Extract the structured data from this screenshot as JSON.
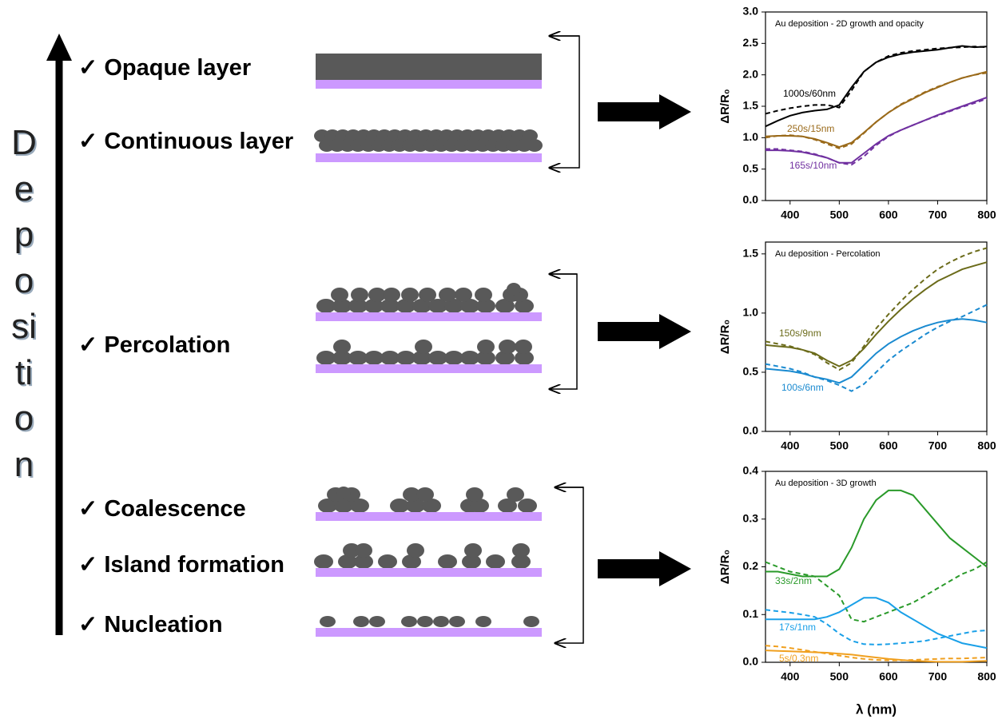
{
  "diagram": {
    "axis_label": "Deposition",
    "stages": [
      "✓ Opaque layer",
      "✓ Continuous layer",
      "✓ Percolation",
      "✓ Coalescence",
      "✓ Island formation",
      "✓ Nucleation"
    ]
  },
  "chart_data": [
    {
      "type": "line",
      "title": "Au deposition - 2D growth and opacity",
      "ylabel": "ΔR/R₀",
      "x": [
        350,
        375,
        400,
        425,
        450,
        475,
        500,
        525,
        550,
        575,
        600,
        625,
        650,
        675,
        700,
        725,
        750,
        775,
        800
      ],
      "xlim": [
        350,
        800
      ],
      "xticks": [
        400,
        500,
        600,
        700,
        800
      ],
      "ylim": [
        0,
        3
      ],
      "yticks": [
        {
          "value": 0,
          "label": "0.0"
        },
        0.5,
        {
          "value": 1,
          "label": "1.0"
        },
        1.5,
        {
          "value": 2,
          "label": "2.0"
        },
        2.5,
        {
          "value": 3,
          "label": "3.0"
        }
      ],
      "series": [
        {
          "name": "1000s/60nm",
          "color": "#000000",
          "values": [
            1.18,
            1.27,
            1.35,
            1.4,
            1.43,
            1.45,
            1.52,
            1.8,
            2.05,
            2.2,
            2.28,
            2.33,
            2.36,
            2.38,
            2.4,
            2.43,
            2.46,
            2.44,
            2.45
          ]
        },
        {
          "color": "#000000",
          "dash": true,
          "values": [
            1.38,
            1.43,
            1.47,
            1.5,
            1.52,
            1.52,
            1.48,
            1.75,
            2.05,
            2.2,
            2.3,
            2.35,
            2.38,
            2.4,
            2.42,
            2.43,
            2.44,
            2.45,
            2.44
          ]
        },
        {
          "name": "250s/15nm",
          "color": "#9a6a1a",
          "values": [
            1.02,
            1.03,
            1.03,
            1.02,
            0.98,
            0.92,
            0.85,
            0.92,
            1.08,
            1.25,
            1.4,
            1.52,
            1.62,
            1.72,
            1.8,
            1.88,
            1.95,
            2.0,
            2.05
          ]
        },
        {
          "color": "#9a6a1a",
          "dash": true,
          "values": [
            1.0,
            1.03,
            1.04,
            1.02,
            0.97,
            0.9,
            0.83,
            0.9,
            1.07,
            1.25,
            1.4,
            1.53,
            1.63,
            1.73,
            1.81,
            1.88,
            1.95,
            2.0,
            2.03
          ]
        },
        {
          "name": "165s/10nm",
          "color": "#7030a0",
          "values": [
            0.8,
            0.8,
            0.79,
            0.77,
            0.73,
            0.68,
            0.6,
            0.6,
            0.75,
            0.9,
            1.03,
            1.12,
            1.2,
            1.28,
            1.36,
            1.43,
            1.5,
            1.57,
            1.64
          ]
        },
        {
          "color": "#7030a0",
          "dash": true,
          "values": [
            0.82,
            0.82,
            0.8,
            0.78,
            0.74,
            0.68,
            0.6,
            0.57,
            0.7,
            0.88,
            1.02,
            1.12,
            1.2,
            1.28,
            1.35,
            1.42,
            1.49,
            1.55,
            1.62
          ]
        }
      ]
    },
    {
      "type": "line",
      "title": "Au deposition - Percolation",
      "ylabel": "ΔR/R₀",
      "x": [
        350,
        375,
        400,
        425,
        450,
        475,
        500,
        525,
        550,
        575,
        600,
        625,
        650,
        675,
        700,
        725,
        750,
        775,
        800
      ],
      "xlim": [
        350,
        800
      ],
      "xticks": [
        400,
        500,
        600,
        700,
        800
      ],
      "ylim": [
        0,
        1.6
      ],
      "yticks": [
        {
          "value": 0,
          "label": "0.0"
        },
        0.5,
        {
          "value": 1,
          "label": "1.0"
        },
        1.5
      ],
      "series": [
        {
          "name": "150s/9nm",
          "color": "#6b6b1a",
          "values": [
            0.73,
            0.72,
            0.71,
            0.69,
            0.66,
            0.6,
            0.55,
            0.6,
            0.7,
            0.82,
            0.93,
            1.03,
            1.12,
            1.2,
            1.27,
            1.32,
            1.37,
            1.4,
            1.43
          ]
        },
        {
          "color": "#6b6b1a",
          "dash": true,
          "values": [
            0.76,
            0.74,
            0.72,
            0.69,
            0.65,
            0.58,
            0.52,
            0.58,
            0.72,
            0.87,
            0.99,
            1.1,
            1.2,
            1.29,
            1.37,
            1.43,
            1.48,
            1.52,
            1.55
          ]
        },
        {
          "name": "100s/6nm",
          "color": "#1a8ad0",
          "values": [
            0.53,
            0.52,
            0.51,
            0.49,
            0.46,
            0.44,
            0.41,
            0.46,
            0.56,
            0.66,
            0.74,
            0.8,
            0.85,
            0.89,
            0.92,
            0.94,
            0.95,
            0.94,
            0.92
          ]
        },
        {
          "color": "#1a8ad0",
          "dash": true,
          "values": [
            0.57,
            0.55,
            0.53,
            0.5,
            0.46,
            0.43,
            0.39,
            0.34,
            0.4,
            0.5,
            0.6,
            0.68,
            0.75,
            0.82,
            0.88,
            0.93,
            0.97,
            1.02,
            1.07
          ]
        }
      ]
    },
    {
      "type": "line",
      "title": "Au deposition - 3D growth",
      "ylabel": "ΔR/R₀",
      "xlabel": "λ (nm)",
      "x": [
        350,
        375,
        400,
        425,
        450,
        475,
        500,
        525,
        550,
        575,
        600,
        625,
        650,
        675,
        700,
        725,
        750,
        775,
        800
      ],
      "xlim": [
        350,
        800
      ],
      "xticks": [
        400,
        500,
        600,
        700,
        800
      ],
      "ylim": [
        0,
        0.4
      ],
      "yticks": [
        {
          "value": 0,
          "label": "0.0"
        },
        0.1,
        0.2,
        0.3,
        0.4
      ],
      "series": [
        {
          "name": "33s/2nm",
          "color": "#2a9a2a",
          "values": [
            0.19,
            0.19,
            0.185,
            0.18,
            0.18,
            0.18,
            0.195,
            0.24,
            0.3,
            0.34,
            0.36,
            0.36,
            0.35,
            0.32,
            0.29,
            0.26,
            0.24,
            0.22,
            0.2
          ]
        },
        {
          "color": "#2a9a2a",
          "dash": true,
          "values": [
            0.21,
            0.2,
            0.19,
            0.185,
            0.18,
            0.16,
            0.14,
            0.09,
            0.085,
            0.095,
            0.105,
            0.115,
            0.125,
            0.14,
            0.155,
            0.17,
            0.185,
            0.195,
            0.21
          ]
        },
        {
          "name": "17s/1nm",
          "color": "#1aa0e8",
          "values": [
            0.09,
            0.09,
            0.09,
            0.09,
            0.09,
            0.095,
            0.105,
            0.12,
            0.135,
            0.135,
            0.125,
            0.105,
            0.09,
            0.075,
            0.06,
            0.05,
            0.04,
            0.035,
            0.03
          ]
        },
        {
          "color": "#1aa0e8",
          "dash": true,
          "values": [
            0.11,
            0.107,
            0.104,
            0.1,
            0.095,
            0.08,
            0.06,
            0.045,
            0.038,
            0.037,
            0.038,
            0.04,
            0.042,
            0.045,
            0.05,
            0.055,
            0.06,
            0.065,
            0.067
          ]
        },
        {
          "name": "5s/0.3nm",
          "color": "#f0a020",
          "values": [
            0.025,
            0.024,
            0.023,
            0.022,
            0.021,
            0.02,
            0.018,
            0.016,
            0.013,
            0.01,
            0.007,
            0.005,
            0.003,
            0.002,
            0.001,
            0.001,
            0.001,
            0.002,
            0.003
          ]
        },
        {
          "color": "#f0a020",
          "dash": true,
          "values": [
            0.035,
            0.033,
            0.03,
            0.026,
            0.022,
            0.018,
            0.014,
            0.01,
            0.007,
            0.005,
            0.004,
            0.004,
            0.005,
            0.006,
            0.007,
            0.008,
            0.008,
            0.009,
            0.01
          ]
        }
      ]
    }
  ]
}
